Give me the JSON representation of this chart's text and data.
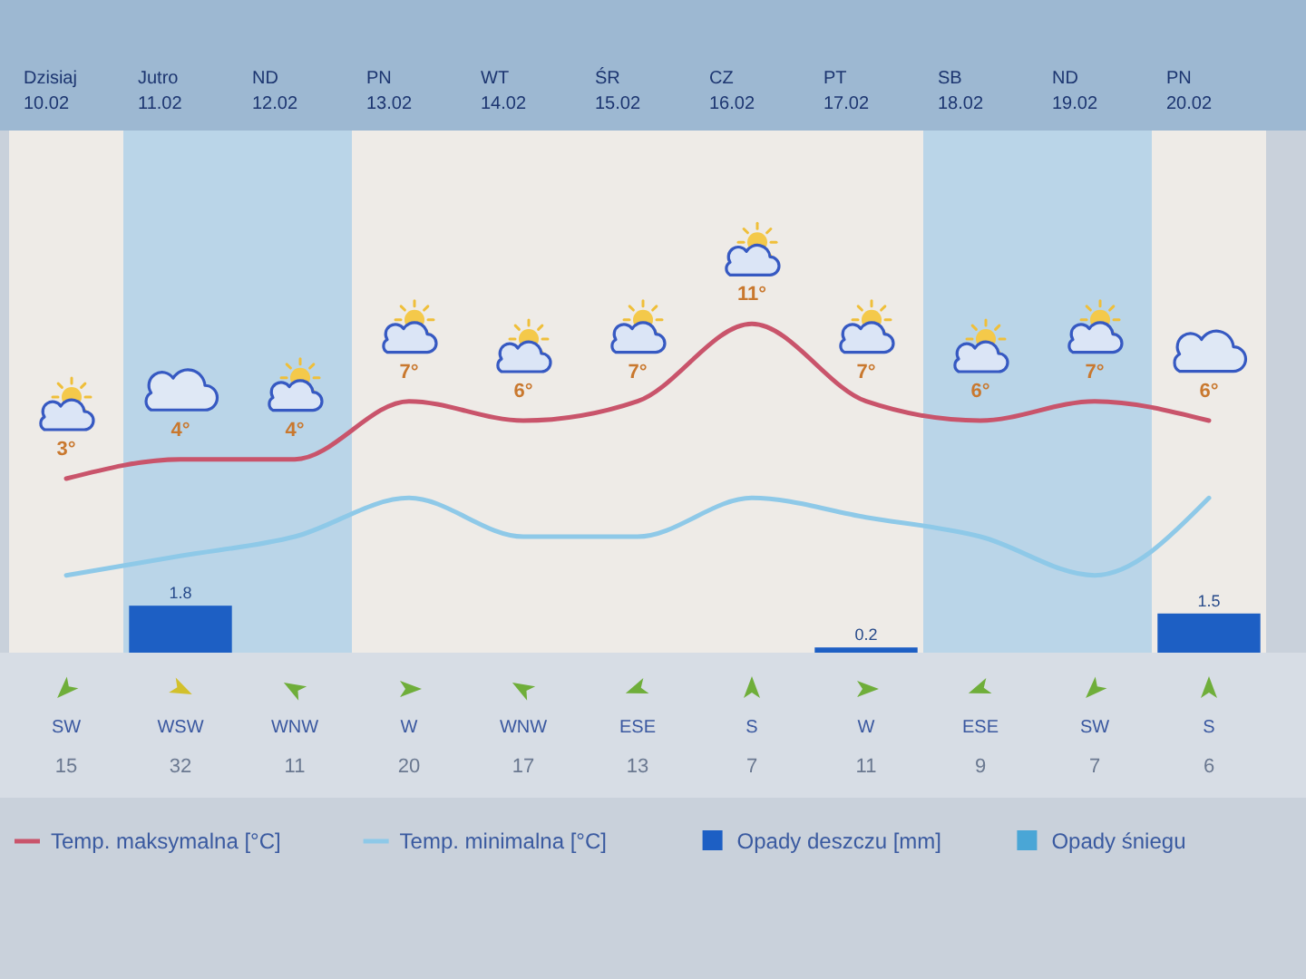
{
  "chart_data": {
    "type": "line",
    "categories": [
      "Dzisiaj 10.02",
      "Jutro 11.02",
      "ND 12.02",
      "PN 13.02",
      "WT 14.02",
      "ŚR 15.02",
      "CZ 16.02",
      "PT 17.02",
      "SB 18.02",
      "ND 19.02",
      "PN 20.02"
    ],
    "series": [
      {
        "name": "Temp. maksymalna [°C]",
        "color": "#c9546b",
        "values": [
          3,
          4,
          4,
          7,
          6,
          7,
          11,
          7,
          6,
          7,
          6
        ],
        "value_labels": [
          "3°",
          "4°",
          "4°",
          "7°",
          "6°",
          "7°",
          "11°",
          "7°",
          "6°",
          "7°",
          "6°"
        ]
      },
      {
        "name": "Temp. minimalna [°C]",
        "color": "#8ec9e8",
        "values": [
          -2,
          -1,
          0,
          2,
          0,
          0,
          2,
          1,
          0,
          -2,
          2
        ]
      },
      {
        "name": "Opady deszczu [mm]",
        "type": "bar",
        "axis": "y2",
        "color": "#1d5fc4",
        "values": [
          null,
          1.8,
          null,
          null,
          null,
          null,
          null,
          0.2,
          null,
          null,
          1.5
        ],
        "value_labels": [
          null,
          "1.8",
          null,
          null,
          null,
          null,
          null,
          "0.2",
          null,
          null,
          "1.5"
        ]
      },
      {
        "name": "Opady śniegu",
        "type": "bar",
        "axis": "y2",
        "color": "#4aa6d6",
        "values": [
          null,
          null,
          null,
          null,
          null,
          null,
          null,
          null,
          null,
          null,
          null
        ]
      }
    ],
    "ylim": [
      -6,
      21
    ],
    "y2lim": [
      0,
      20
    ],
    "tick_labels": "x",
    "legend": "bottom",
    "annotations": [
      "SW",
      "WSW",
      "WNW",
      "W",
      "WNW",
      "ESE",
      "S",
      "W",
      "ESE",
      "SW",
      "S",
      "15",
      "32",
      "11",
      "20",
      "17",
      "13",
      "7",
      "11",
      "9",
      "7",
      "6"
    ]
  }
}
